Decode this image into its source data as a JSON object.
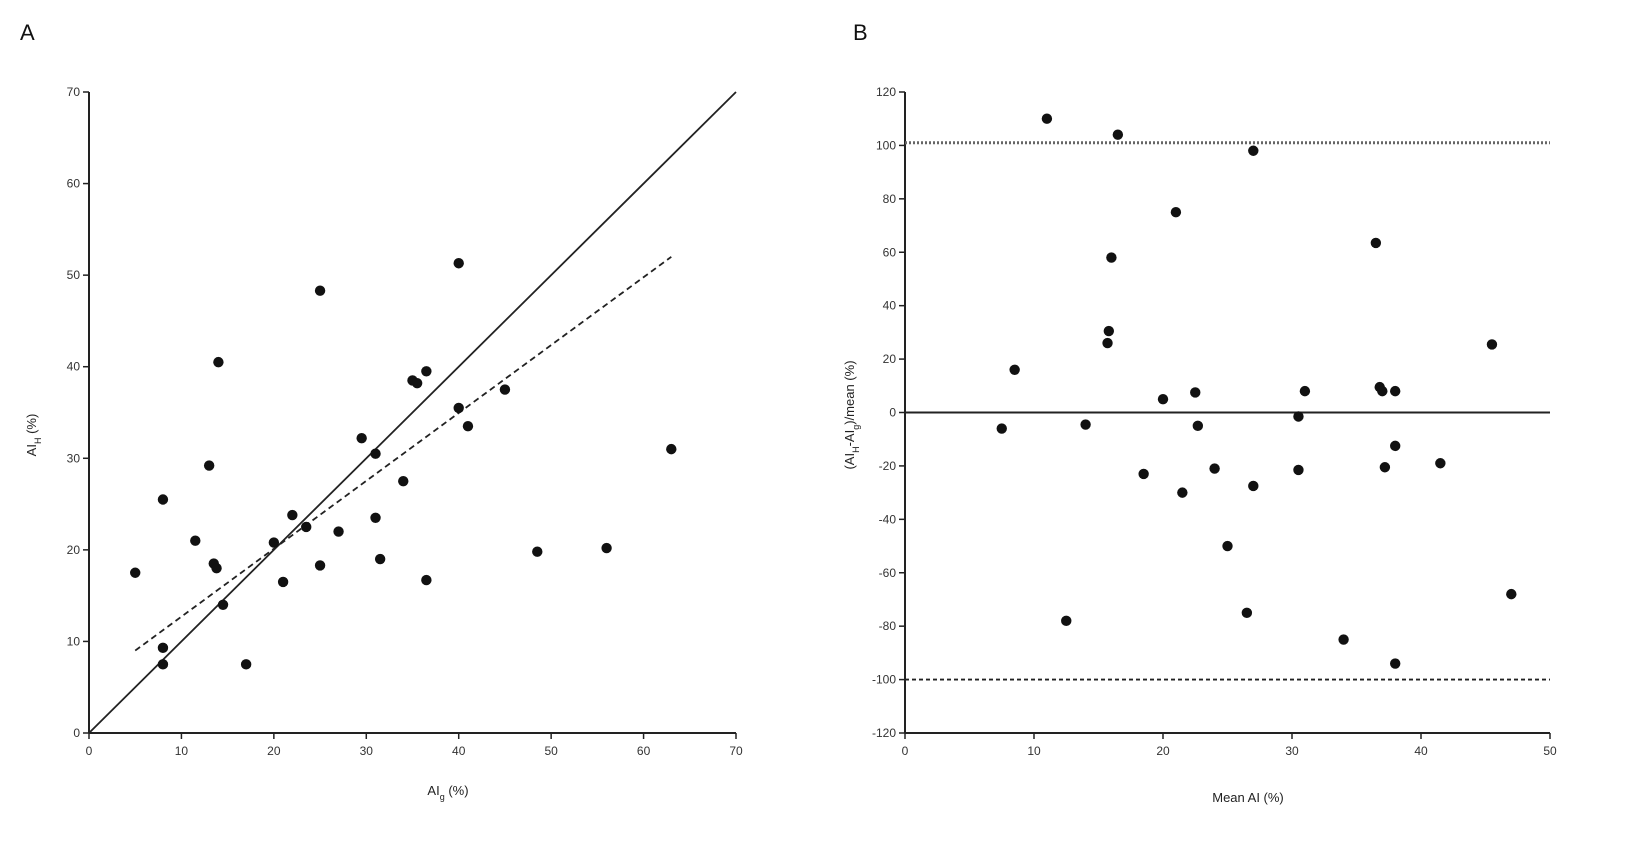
{
  "chart_data": [
    {
      "panel": "A",
      "type": "scatter",
      "xlabel_main": "AI",
      "xlabel_sub": "g",
      "xlabel_unit": " (%)",
      "ylabel_main": "AI",
      "ylabel_sub": "H",
      "ylabel_unit": " (%)",
      "xlim": [
        0,
        70
      ],
      "ylim": [
        0,
        70
      ],
      "xticks": [
        0,
        10,
        20,
        30,
        40,
        50,
        60,
        70
      ],
      "yticks": [
        0,
        10,
        20,
        30,
        40,
        50,
        60,
        70
      ],
      "points": [
        [
          5,
          17.5
        ],
        [
          8,
          25.5
        ],
        [
          8,
          9.3
        ],
        [
          8,
          7.5
        ],
        [
          11.5,
          21
        ],
        [
          13,
          29.2
        ],
        [
          13.5,
          18.5
        ],
        [
          13.8,
          18
        ],
        [
          14,
          40.5
        ],
        [
          14.5,
          14
        ],
        [
          17,
          7.5
        ],
        [
          20,
          20.8
        ],
        [
          21,
          16.5
        ],
        [
          22,
          23.8
        ],
        [
          23.5,
          22.5
        ],
        [
          25,
          48.3
        ],
        [
          25,
          18.3
        ],
        [
          27,
          22
        ],
        [
          29.5,
          32.2
        ],
        [
          31,
          23.5
        ],
        [
          31,
          30.5
        ],
        [
          31.5,
          19
        ],
        [
          34,
          27.5
        ],
        [
          35,
          38.5
        ],
        [
          35.5,
          38.2
        ],
        [
          36.5,
          39.5
        ],
        [
          36.5,
          16.7
        ],
        [
          40,
          51.3
        ],
        [
          40,
          35.5
        ],
        [
          41,
          33.5
        ],
        [
          45,
          37.5
        ],
        [
          48.5,
          19.8
        ],
        [
          56,
          20.2
        ],
        [
          63,
          31
        ]
      ],
      "lines": [
        {
          "style": "solid",
          "x": [
            0,
            70
          ],
          "y": [
            0,
            70
          ]
        },
        {
          "style": "dashed",
          "x": [
            5,
            63
          ],
          "y": [
            9,
            52
          ]
        }
      ]
    },
    {
      "panel": "B",
      "type": "scatter",
      "xlabel": "Mean AI (%)",
      "ylabel_pre": "(AI",
      "ylabel_sub1": "H",
      "ylabel_mid": "-AI",
      "ylabel_sub2": "g",
      "ylabel_post": ")/mean (%)",
      "xlim": [
        0,
        50
      ],
      "ylim": [
        -120,
        120
      ],
      "xticks": [
        0,
        10,
        20,
        30,
        40,
        50
      ],
      "yticks": [
        -120,
        -100,
        -80,
        -60,
        -40,
        -20,
        0,
        20,
        40,
        60,
        80,
        100,
        120
      ],
      "points": [
        [
          11,
          110
        ],
        [
          16.5,
          104
        ],
        [
          27,
          98
        ],
        [
          21,
          75
        ],
        [
          36.5,
          63.5
        ],
        [
          16,
          58
        ],
        [
          15.8,
          30.5
        ],
        [
          15.7,
          26
        ],
        [
          45.5,
          25.5
        ],
        [
          8.5,
          16
        ],
        [
          22.5,
          7.5
        ],
        [
          31,
          8
        ],
        [
          36.8,
          9.5
        ],
        [
          37,
          8
        ],
        [
          38,
          8
        ],
        [
          20,
          5
        ],
        [
          30.5,
          -1.5
        ],
        [
          7.5,
          -6
        ],
        [
          14,
          -4.5
        ],
        [
          22.7,
          -5
        ],
        [
          38,
          -12.5
        ],
        [
          24,
          -21
        ],
        [
          30.5,
          -21.5
        ],
        [
          37.2,
          -20.5
        ],
        [
          41.5,
          -19
        ],
        [
          18.5,
          -23
        ],
        [
          21.5,
          -30
        ],
        [
          27,
          -27.5
        ],
        [
          25,
          -50
        ],
        [
          26.5,
          -75
        ],
        [
          47,
          -68
        ],
        [
          12.5,
          -78
        ],
        [
          34,
          -85
        ],
        [
          38,
          -94
        ]
      ],
      "reference_lines": [
        {
          "style": "dotted",
          "y": 101
        },
        {
          "style": "solid",
          "y": 0
        },
        {
          "style": "dashed",
          "y": -100
        }
      ]
    }
  ]
}
